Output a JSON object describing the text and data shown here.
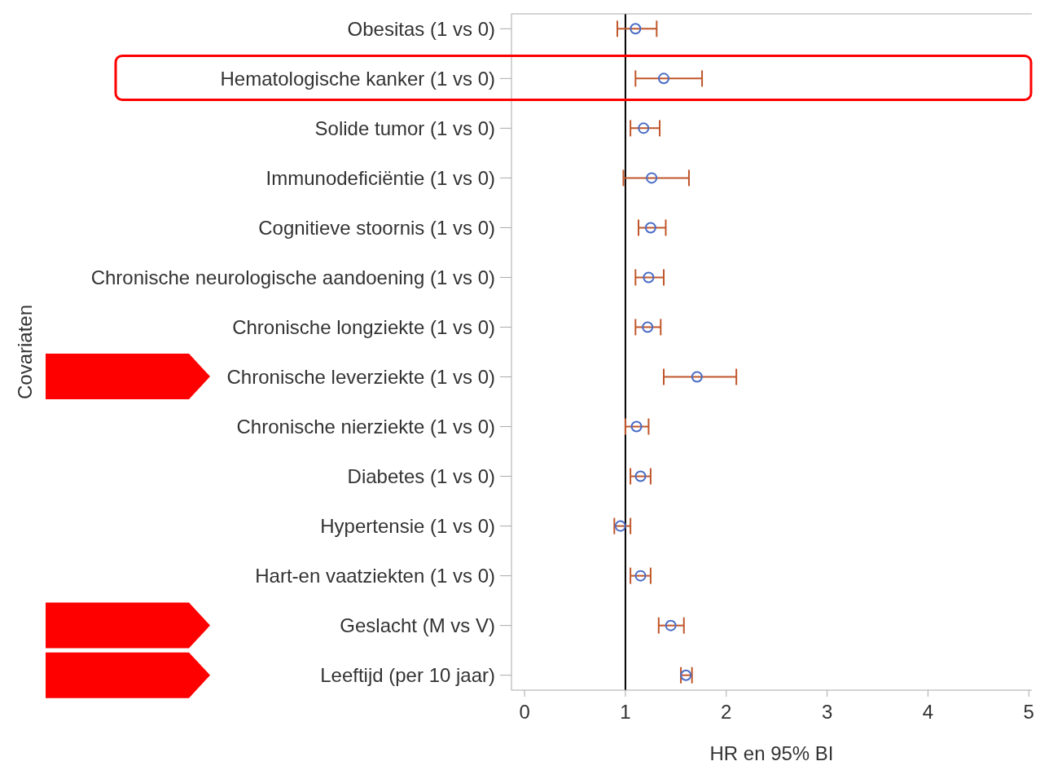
{
  "chart_data": {
    "type": "scatter",
    "orientation": "horizontal",
    "xlabel": "HR en 95% BI",
    "ylabel": "Covariaten",
    "categories": [
      "Obesitas (1 vs 0)",
      "Hematologische kanker (1 vs 0)",
      "Solide tumor (1 vs 0)",
      "Immunodeficiëntie (1 vs 0)",
      "Cognitieve stoornis (1 vs 0)",
      "Chronische neurologische aandoening (1 vs 0)",
      "Chronische longziekte (1 vs 0)",
      "Chronische leverziekte (1 vs 0)",
      "Chronische nierziekte (1 vs 0)",
      "Diabetes (1 vs 0)",
      "Hypertensie (1 vs 0)",
      "Hart-en vaatziekten (1 vs 0)",
      "Geslacht (M vs V)",
      "Leeftijd (per 10 jaar)"
    ],
    "values": [
      1.1,
      1.38,
      1.18,
      1.26,
      1.25,
      1.23,
      1.22,
      1.71,
      1.11,
      1.15,
      0.95,
      1.15,
      1.45,
      1.6
    ],
    "errors": [
      [
        0.92,
        1.31
      ],
      [
        1.1,
        1.76
      ],
      [
        1.05,
        1.34
      ],
      [
        0.98,
        1.63
      ],
      [
        1.13,
        1.4
      ],
      [
        1.1,
        1.38
      ],
      [
        1.1,
        1.35
      ],
      [
        1.38,
        2.1
      ],
      [
        1.0,
        1.23
      ],
      [
        1.05,
        1.25
      ],
      [
        0.89,
        1.05
      ],
      [
        1.05,
        1.25
      ],
      [
        1.33,
        1.58
      ],
      [
        1.55,
        1.66
      ]
    ],
    "color": "#4a6cc4",
    "marker": "circle",
    "xlim": [
      -0.13,
      5.03
    ],
    "xticks": [
      0,
      1,
      2,
      3,
      4,
      5
    ],
    "ref_lines": [
      {
        "axis": "x",
        "value": 1,
        "color": "#000000"
      }
    ],
    "grid": false,
    "legend": false
  }
}
